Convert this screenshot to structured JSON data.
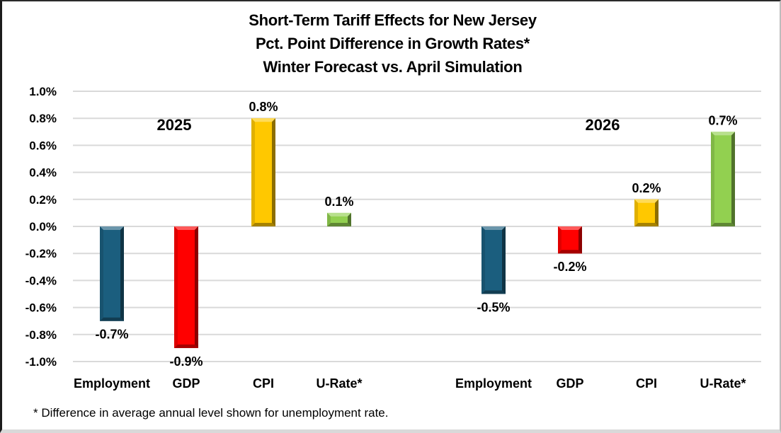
{
  "chart_data": {
    "type": "bar",
    "title": "Short-Term Tariff Effects for New Jersey",
    "subtitle_lines": [
      "Pct. Point Difference in Growth Rates*",
      "Winter Forecast vs. April Simulation"
    ],
    "xlabel": "",
    "ylabel": "",
    "ylim": [
      -1.0,
      1.0
    ],
    "y_ticks": [
      1.0,
      0.8,
      0.6,
      0.4,
      0.2,
      0.0,
      -0.2,
      -0.4,
      -0.6,
      -0.8,
      -1.0
    ],
    "y_tick_labels": [
      "1.0%",
      "0.8%",
      "0.6%",
      "0.4%",
      "0.2%",
      "0.0%",
      "-0.2%",
      "-0.4%",
      "-0.6%",
      "-0.8%",
      "-1.0%"
    ],
    "grid": true,
    "legend": "none",
    "groups": [
      {
        "label": "2025",
        "categories": [
          "Employment",
          "GDP",
          "CPI",
          "U-Rate*"
        ],
        "values": [
          -0.7,
          -0.9,
          0.8,
          0.1
        ],
        "data_labels": [
          "-0.7%",
          "-0.9%",
          "0.8%",
          "0.1%"
        ]
      },
      {
        "label": "2026",
        "categories": [
          "Employment",
          "GDP",
          "CPI",
          "U-Rate*"
        ],
        "values": [
          -0.5,
          -0.2,
          0.2,
          0.7
        ],
        "data_labels": [
          "-0.5%",
          "-0.2%",
          "0.2%",
          "0.7%"
        ]
      }
    ],
    "category_colors": {
      "Employment": "#1b5e7e",
      "GDP": "#ff0000",
      "CPI": "#ffc800",
      "U-Rate*": "#92d050"
    },
    "footnote": "* Difference in average annual level shown for unemployment rate."
  }
}
